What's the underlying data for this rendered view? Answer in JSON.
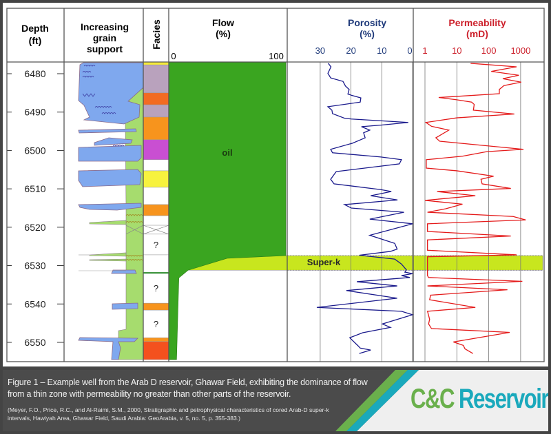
{
  "headers": {
    "depth": [
      "Depth",
      "(ft)"
    ],
    "grain": [
      "Increasing",
      "grain",
      "support"
    ],
    "facies": "Facies",
    "flow": [
      "Flow",
      "(%)"
    ],
    "porosity": [
      "Porosity",
      "(%)"
    ],
    "permeability": [
      "Permeability",
      "(mD)"
    ]
  },
  "labels": {
    "oil": "oil",
    "superk": "Super-k"
  },
  "caption": {
    "main": "Figure 1 – Example well from the Arab D reservoir, Ghawar Field, exhibiting the dominance of flow from a thin zone with permeability no greater than other parts of the reservoir.",
    "reference": "(Meyer, F.O., Price, R.C., and Al-Raimi, S.M., 2000, Stratigraphic and petrophysical characteristics of cored Arab-D super-k intervals, Hawiyah Area, Ghawar Field, Saudi Arabia: GeoArabia, v. 5, no. 5, p. 355-383.)"
  },
  "logo": {
    "part1": "C&C",
    "part2": "Reservoirs",
    "color1": "#6ab04c",
    "color2": "#1aa9bc"
  },
  "colors": {
    "porosity": "#1a1a8c",
    "permeability": "#e41a1a",
    "oil": "#3aa520",
    "superk": "#c8e61e",
    "grain_blue": "#7fa8ee",
    "grain_green": "#a6dc6e",
    "header_porosity": "#1f3a7a",
    "header_permeability": "#cc1f2a"
  },
  "chart_data": {
    "type": "line",
    "ylabel": "Depth (ft)",
    "depth_ticks": [
      6480,
      6490,
      6500,
      6510,
      6520,
      6530,
      6540,
      6550
    ],
    "ylim": [
      6477,
      6554.5
    ],
    "superk_interval": [
      6527.4,
      6531.2
    ],
    "flow": {
      "ticks": [
        "0",
        "100"
      ],
      "xlim": [
        0,
        100
      ],
      "points": [
        [
          6477,
          100
        ],
        [
          6527.4,
          100
        ],
        [
          6528.1,
          49
        ],
        [
          6531.2,
          15
        ],
        [
          6533.2,
          7
        ],
        [
          6554.5,
          5
        ]
      ]
    },
    "porosity": {
      "ticks": [
        30,
        20,
        10,
        0
      ],
      "xlim": [
        30,
        0
      ],
      "reversed": true,
      "points": [
        [
          6477.3,
          27.4
        ],
        [
          6478.2,
          26.5
        ],
        [
          6479.9,
          27.5
        ],
        [
          6481.1,
          26.6
        ],
        [
          6482.0,
          22.6
        ],
        [
          6483.2,
          21.8
        ],
        [
          6484.1,
          20.6
        ],
        [
          6485.3,
          21.0
        ],
        [
          6485.6,
          19.9
        ],
        [
          6486.3,
          16.8
        ],
        [
          6487.4,
          17.0
        ],
        [
          6488.6,
          27.5
        ],
        [
          6489.5,
          26.2
        ],
        [
          6490.4,
          26.0
        ],
        [
          6491.6,
          22.1
        ],
        [
          6491.8,
          19.9
        ],
        [
          6492.7,
          1.4
        ],
        [
          6493.4,
          10.3
        ],
        [
          6493.8,
          16.6
        ],
        [
          6494.7,
          13.9
        ],
        [
          6495.4,
          15.9
        ],
        [
          6496.7,
          15.4
        ],
        [
          6498.1,
          19.5
        ],
        [
          6499.7,
          26.6
        ],
        [
          6500.6,
          26.0
        ],
        [
          6501.7,
          10.3
        ],
        [
          6502.4,
          3.6
        ],
        [
          6503.5,
          4.3
        ],
        [
          6505.5,
          24.8
        ],
        [
          6507.5,
          26.6
        ],
        [
          6508.7,
          25.5
        ],
        [
          6510.2,
          10.3
        ],
        [
          6510.7,
          6.9
        ],
        [
          6511.8,
          13.6
        ],
        [
          6512.9,
          4.9
        ],
        [
          6514.1,
          22.1
        ],
        [
          6515.0,
          19.9
        ],
        [
          6516.1,
          2.8
        ],
        [
          6517.9,
          13.9
        ],
        [
          6519.1,
          0
        ],
        [
          6522.1,
          13.9
        ],
        [
          6524.2,
          5.8
        ],
        [
          6525.7,
          5.0
        ],
        [
          6526.3,
          7.2
        ],
        [
          6527.3,
          17.3
        ],
        [
          6528.3,
          5.8
        ],
        [
          6529.6,
          3.6
        ],
        [
          6531.1,
          2.0
        ],
        [
          6531.7,
          2.5
        ],
        [
          6532.1,
          0
        ],
        [
          6532.6,
          3.6
        ],
        [
          6533.1,
          0.9
        ],
        [
          6534.2,
          18.1
        ],
        [
          6535.3,
          5.0
        ],
        [
          6536.5,
          21.5
        ],
        [
          6538.5,
          5.0
        ],
        [
          6540.9,
          31.1
        ],
        [
          6541.9,
          3.6
        ],
        [
          6542.8,
          0
        ],
        [
          6545.2,
          9.8
        ],
        [
          6546.1,
          7.2
        ],
        [
          6547.5,
          16.2
        ],
        [
          6548.8,
          20.4
        ],
        [
          6550.9,
          17.7
        ],
        [
          6551.5,
          17.0
        ],
        [
          6552.0,
          13.6
        ],
        [
          6552.9,
          17.3
        ]
      ]
    },
    "permeability": {
      "ticks": [
        1,
        10,
        100,
        1000
      ],
      "scale": "log",
      "points": [
        [
          6477.3,
          27
        ],
        [
          6478.2,
          746
        ],
        [
          6479.4,
          120
        ],
        [
          6480.4,
          879
        ],
        [
          6481.3,
          276
        ],
        [
          6482.2,
          1040
        ],
        [
          6483.1,
          300
        ],
        [
          6484.1,
          215
        ],
        [
          6485.2,
          215
        ],
        [
          6486.2,
          2.7
        ],
        [
          6486.8,
          10
        ],
        [
          6487.4,
          29
        ],
        [
          6488.0,
          35
        ],
        [
          6489.5,
          33
        ],
        [
          6490.5,
          635
        ],
        [
          6491.5,
          10
        ],
        [
          6492.7,
          1.07
        ],
        [
          6493.7,
          1.6
        ],
        [
          6494.7,
          5.6
        ],
        [
          6496.7,
          2.2
        ],
        [
          6497.6,
          2.9
        ],
        [
          6499.7,
          1230
        ],
        [
          6500.3,
          87
        ],
        [
          6501.5,
          15
        ],
        [
          6502.4,
          1.1
        ],
        [
          6504.6,
          1.1
        ],
        [
          6505.3,
          10
        ],
        [
          6506.7,
          142
        ],
        [
          6507.5,
          57
        ],
        [
          6508.7,
          62
        ],
        [
          6509.9,
          493
        ],
        [
          6510.7,
          2.4
        ],
        [
          6511.8,
          38
        ],
        [
          6513.0,
          1
        ],
        [
          6514.0,
          15
        ],
        [
          6515.2,
          4.4
        ],
        [
          6516.1,
          1.2
        ],
        [
          6517.2,
          582
        ],
        [
          6518.1,
          1445
        ],
        [
          6519.1,
          1.2
        ],
        [
          6521.1,
          1.2
        ],
        [
          6522.3,
          493
        ],
        [
          6523.3,
          1.2
        ],
        [
          6526.0,
          1.2
        ],
        [
          6527.2,
          746
        ],
        [
          6527.7,
          1.2
        ],
        [
          6532.6,
          1.2
        ],
        [
          6533.1,
          1.3
        ],
        [
          6534.1,
          1130
        ],
        [
          6535.3,
          1.2
        ],
        [
          6536.3,
          385
        ],
        [
          6537.7,
          1.5
        ],
        [
          6538.9,
          1.4
        ],
        [
          6540.9,
          38
        ],
        [
          6541.9,
          1.2
        ],
        [
          6544.0,
          1.4
        ],
        [
          6545.2,
          1.3
        ],
        [
          6546.4,
          1.6
        ],
        [
          6547.4,
          454
        ],
        [
          6549.9,
          7.8
        ],
        [
          6550.8,
          16
        ],
        [
          6551.7,
          18
        ],
        [
          6552.9,
          32
        ]
      ]
    },
    "facies": [
      {
        "top": 6477,
        "base": 6477.7,
        "color": "#f5ea3a"
      },
      {
        "top": 6477.7,
        "base": 6485.0,
        "color": "#b9a2bd"
      },
      {
        "top": 6485.0,
        "base": 6488.1,
        "color": "#f26b22"
      },
      {
        "top": 6488.1,
        "base": 6491.3,
        "color": "#b9a2bd"
      },
      {
        "top": 6491.3,
        "base": 6497.2,
        "color": "#f7941d"
      },
      {
        "top": 6497.2,
        "base": 6502.4,
        "color": "#c94fd2"
      },
      {
        "top": 6502.4,
        "base": 6505.3,
        "color": "#ffffff"
      },
      {
        "top": 6505.3,
        "base": 6509.6,
        "color": "#f7f23e"
      },
      {
        "top": 6509.6,
        "base": 6514.1,
        "color": "#ffffff"
      },
      {
        "top": 6514.1,
        "base": 6517.0,
        "color": "#f7941d"
      },
      {
        "top": 6517.0,
        "base": 6519.5,
        "color": "#ffffff"
      },
      {
        "top": 6519.5,
        "base": 6521.8,
        "color": "#ffffff",
        "crossed": true
      },
      {
        "top": 6521.8,
        "base": 6527.2,
        "color": "#ffffff",
        "label": "?"
      },
      {
        "top": 6527.2,
        "base": 6531.9,
        "color": "#ffffff"
      },
      {
        "top": 6531.9,
        "base": 6539.8,
        "color": "#ffffff",
        "label": "?"
      },
      {
        "top": 6539.8,
        "base": 6541.6,
        "color": "#f7941d"
      },
      {
        "top": 6541.6,
        "base": 6548.8,
        "color": "#ffffff",
        "label": "?"
      },
      {
        "top": 6548.8,
        "base": 6549.8,
        "color": "#f7941d"
      },
      {
        "top": 6549.8,
        "base": 6554.5,
        "color": "#f4511e"
      }
    ]
  }
}
